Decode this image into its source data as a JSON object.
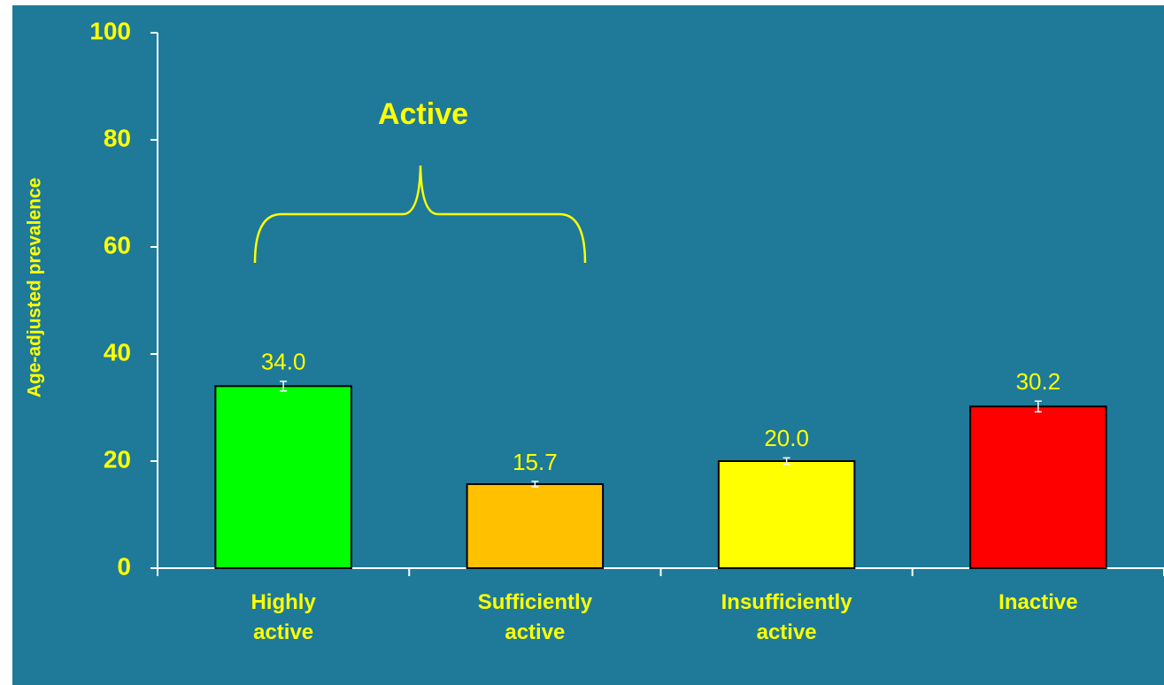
{
  "chart_data": {
    "type": "bar",
    "y_label": "Age-adjusted prevalence",
    "categories": [
      "Highly active",
      "Sufficiently active",
      "Insufficiently active",
      "Inactive"
    ],
    "values": [
      34.0,
      15.7,
      20.0,
      30.2
    ],
    "value_labels": [
      "34.0",
      "15.7",
      "20.0",
      "30.2"
    ],
    "errors": [
      0.9,
      0.5,
      0.6,
      1.0
    ],
    "colors": [
      "#00ff00",
      "#ffc000",
      "#ffff00",
      "#ff0000"
    ],
    "ylim": [
      0,
      100
    ],
    "yticks": [
      0,
      20,
      40,
      60,
      80,
      100
    ],
    "annotation": "Active"
  }
}
